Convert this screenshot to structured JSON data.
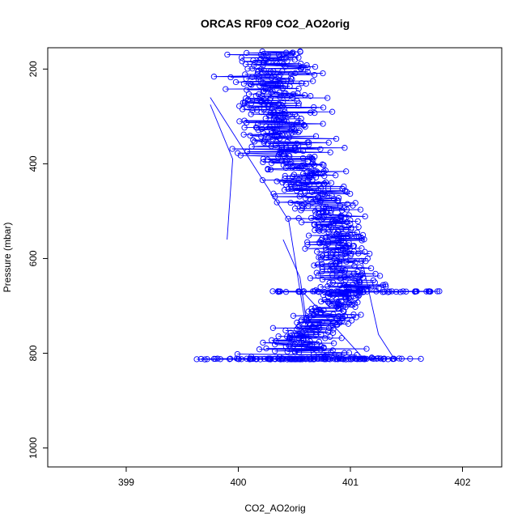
{
  "chart_data": {
    "type": "line",
    "title": "ORCAS RF09 CO2_AO2orig",
    "xlabel": "CO2_AO2orig",
    "ylabel": "Pressure (mbar)",
    "xlim": [
      398.3,
      402.35
    ],
    "ylim": [
      1040,
      155
    ],
    "y_inverted": true,
    "xticks": [
      399,
      400,
      401,
      402
    ],
    "yticks": [
      200,
      400,
      600,
      800,
      1000
    ],
    "grid": false,
    "legend": "none",
    "series": [
      {
        "color": "#0000ff",
        "marker": "open-circle",
        "line": true,
        "profile": [
          {
            "p": 160,
            "x_mean": 400.3,
            "x_spread": 0.9
          },
          {
            "p": 250,
            "x_mean": 400.3,
            "x_spread": 0.75
          },
          {
            "p": 350,
            "x_mean": 400.4,
            "x_spread": 0.7
          },
          {
            "p": 450,
            "x_mean": 400.65,
            "x_spread": 0.65
          },
          {
            "p": 550,
            "x_mean": 400.85,
            "x_spread": 0.6
          },
          {
            "p": 650,
            "x_mean": 401.0,
            "x_spread": 0.55
          },
          {
            "p": 700,
            "x_mean": 400.9,
            "x_spread": 0.4
          },
          {
            "p": 760,
            "x_mean": 400.6,
            "x_spread": 0.55
          },
          {
            "p": 800,
            "x_mean": 400.6,
            "x_spread": 0.95
          },
          {
            "p": 812,
            "x_mean": 400.6,
            "x_spread": 1.6
          }
        ],
        "transects": [
          {
            "x": [
              399.75,
              399.95,
              399.9
            ],
            "p": [
              275,
              390,
              560
            ]
          },
          {
            "x": [
              399.75,
              400.45,
              400.6
            ],
            "p": [
              260,
              520,
              740
            ]
          },
          {
            "x": [
              401.1,
              401.25,
              401.4
            ],
            "p": [
              600,
              760,
              815
            ]
          },
          {
            "x": [
              400.4,
              400.55,
              400.65
            ],
            "p": [
              560,
              640,
              800
            ]
          }
        ]
      }
    ]
  }
}
